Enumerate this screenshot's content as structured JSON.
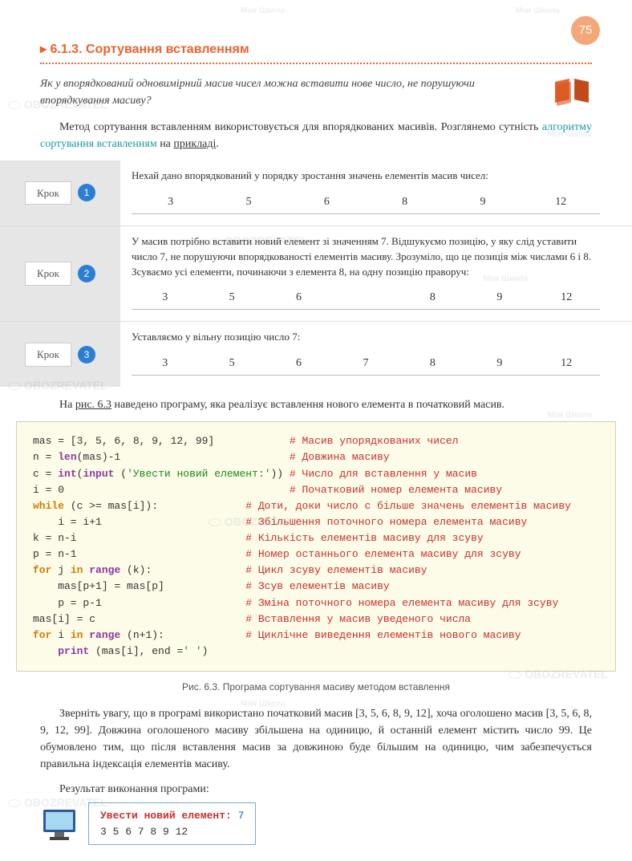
{
  "page_number": "75",
  "section_title": "6.1.3. Сортування вставленням",
  "intro_question": "Як у впорядкований одновимірний масив чисел можна вставити нове число, не порушуючи впорядкування масиву?",
  "para1_a": "Метод сортування вставленням використовується для впорядкованих масивів. Розглянемо сутність ",
  "para1_link": "алгоритму сортування вставленням",
  "para1_b": " на ",
  "para1_ul": "прикладі",
  "step_word": "Крок",
  "steps": [
    {
      "num": "1",
      "text": "Нехай дано впорядкований у порядку зростання значень елементів масив чисел:",
      "row": [
        "3",
        "5",
        "6",
        "8",
        "9",
        "12"
      ]
    },
    {
      "num": "2",
      "text": "У масив потрібно вставити новий елемент зі значенням 7. Відшукуємо позицію, у яку слід уставити число 7, не порушуючи впорядкованості елементів масиву. Зрозуміло, що це позиція між числами 6 і 8. Зсуваємо усі елементи, починаючи з елемента 8, на одну позицію праворуч:",
      "row": [
        "3",
        "5",
        "6",
        "",
        "8",
        "9",
        "12"
      ]
    },
    {
      "num": "3",
      "text": "Уставляємо у вільну позицію число 7:",
      "row": [
        "3",
        "5",
        "6",
        "7",
        "8",
        "9",
        "12"
      ]
    }
  ],
  "para2_a": "На ",
  "para2_ul": "рис. 6.3",
  "para2_b": " наведено програму, яка реалізує вставлення нового елемента в початковий масив.",
  "code": {
    "lines": [
      {
        "code": "mas = [3, 5, 6, 8, 9, 12, 99]",
        "pad": 12,
        "comment": "# Масив упорядкованих чисел"
      },
      {
        "code": "n = len(mas)-1",
        "pad": 27,
        "comment": "# Довжина масиву"
      },
      {
        "code": "c = int(input ('Увести новий елемент:'))",
        "pad": 1,
        "comment": "# Число для вставлення у масив"
      },
      {
        "code": "i = 0",
        "pad": 36,
        "comment": "# Початковий номер елемента масиву"
      },
      {
        "code": "while (c >= mas[i]):",
        "pad": 14,
        "comment": "# Доти, доки число с більше значень елементів масиву"
      },
      {
        "code": "    i = i+1",
        "pad": 23,
        "comment": "# Збільшення поточного номера елемента масиву"
      },
      {
        "code": "k = n-i",
        "pad": 27,
        "comment": "# Кількість елементів масиву для зсуву"
      },
      {
        "code": "p = n-1",
        "pad": 27,
        "comment": "# Номер останнього елемента масиву для зсуву"
      },
      {
        "code": "for j in range (k):",
        "pad": 15,
        "comment": "# Цикл зсуву елементів масиву"
      },
      {
        "code": "    mas[p+1] = mas[p]",
        "pad": 13,
        "comment": "# Зсув елементів масиву"
      },
      {
        "code": "    p = p-1",
        "pad": 23,
        "comment": "# Зміна поточного номера елемента масиву для зсуву"
      },
      {
        "code": "mas[i] = c",
        "pad": 24,
        "comment": "# Вставлення у масив уведеного числа"
      },
      {
        "code": "for i in range (n+1):",
        "pad": 13,
        "comment": "# Циклічне виведення елементів нового масиву"
      },
      {
        "code": "    print (mas[i], end =' ')",
        "pad": 0,
        "comment": ""
      }
    ]
  },
  "caption": "Рис. 6.3. Програма сортування масиву методом вставлення",
  "para3": "Зверніть увагу, що в програмі використано початковий масив [3, 5, 6, 8, 9, 12], хоча оголошено масив [3, 5, 6, 8, 9, 12, 99]. Довжина оголошеного масиву збільшена на одиницю, й останній елемент містить число 99. Це обумовлено тим, що після вставлення масив за довжиною буде більшим на одиницю, чим забезпечується правильна індексація елементів масиву.",
  "para4": "Результат виконання програми:",
  "result": {
    "label": "Увести новий елемент: ",
    "input": "7",
    "output": "3 5 6 7 8 9 12"
  },
  "watermarks": {
    "small": "Моя Школа",
    "big": "OBOZREVATEL"
  },
  "colors": {
    "accent": "#e8632e",
    "teal": "#1a9b9b",
    "step_num_bg": "#2a7fd4",
    "code_bg": "#fdfce8",
    "comment": "#c93030"
  }
}
